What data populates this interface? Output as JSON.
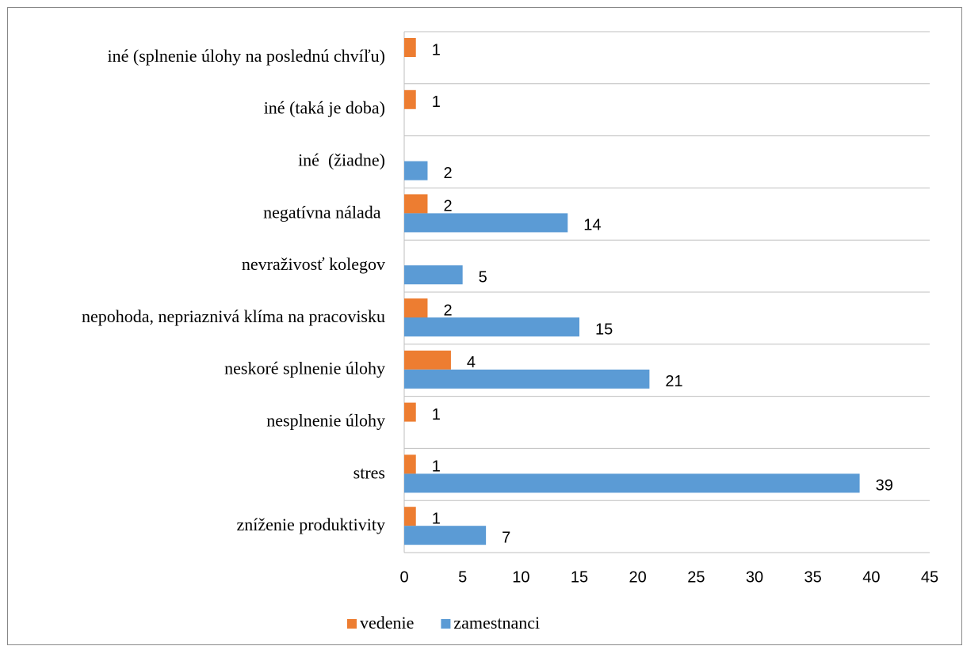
{
  "chart_data": {
    "type": "bar",
    "orientation": "horizontal",
    "categories": [
      "iné (splnenie úlohy na poslednú chvíľu)",
      "iné (taká je doba)",
      "iné  (žiadne)",
      "negatívna nálada ",
      "nevraživosť kolegov",
      "nepohoda, nepriaznivá klíma na pracovisku",
      "neskoré splnenie úlohy",
      "nesplnenie úlohy",
      "stres",
      "zníženie produktivity"
    ],
    "series": [
      {
        "name": "vedenie",
        "color": "#ed7d31",
        "values": [
          1,
          1,
          null,
          2,
          null,
          2,
          4,
          1,
          1,
          1
        ]
      },
      {
        "name": "zamestnanci",
        "color": "#5b9bd5",
        "values": [
          null,
          null,
          2,
          14,
          5,
          15,
          21,
          null,
          39,
          7
        ]
      }
    ],
    "xlim": [
      0,
      45
    ],
    "xticks": [
      0,
      5,
      10,
      15,
      20,
      25,
      30,
      35,
      40,
      45
    ],
    "grid": true,
    "legend": "bottom"
  }
}
